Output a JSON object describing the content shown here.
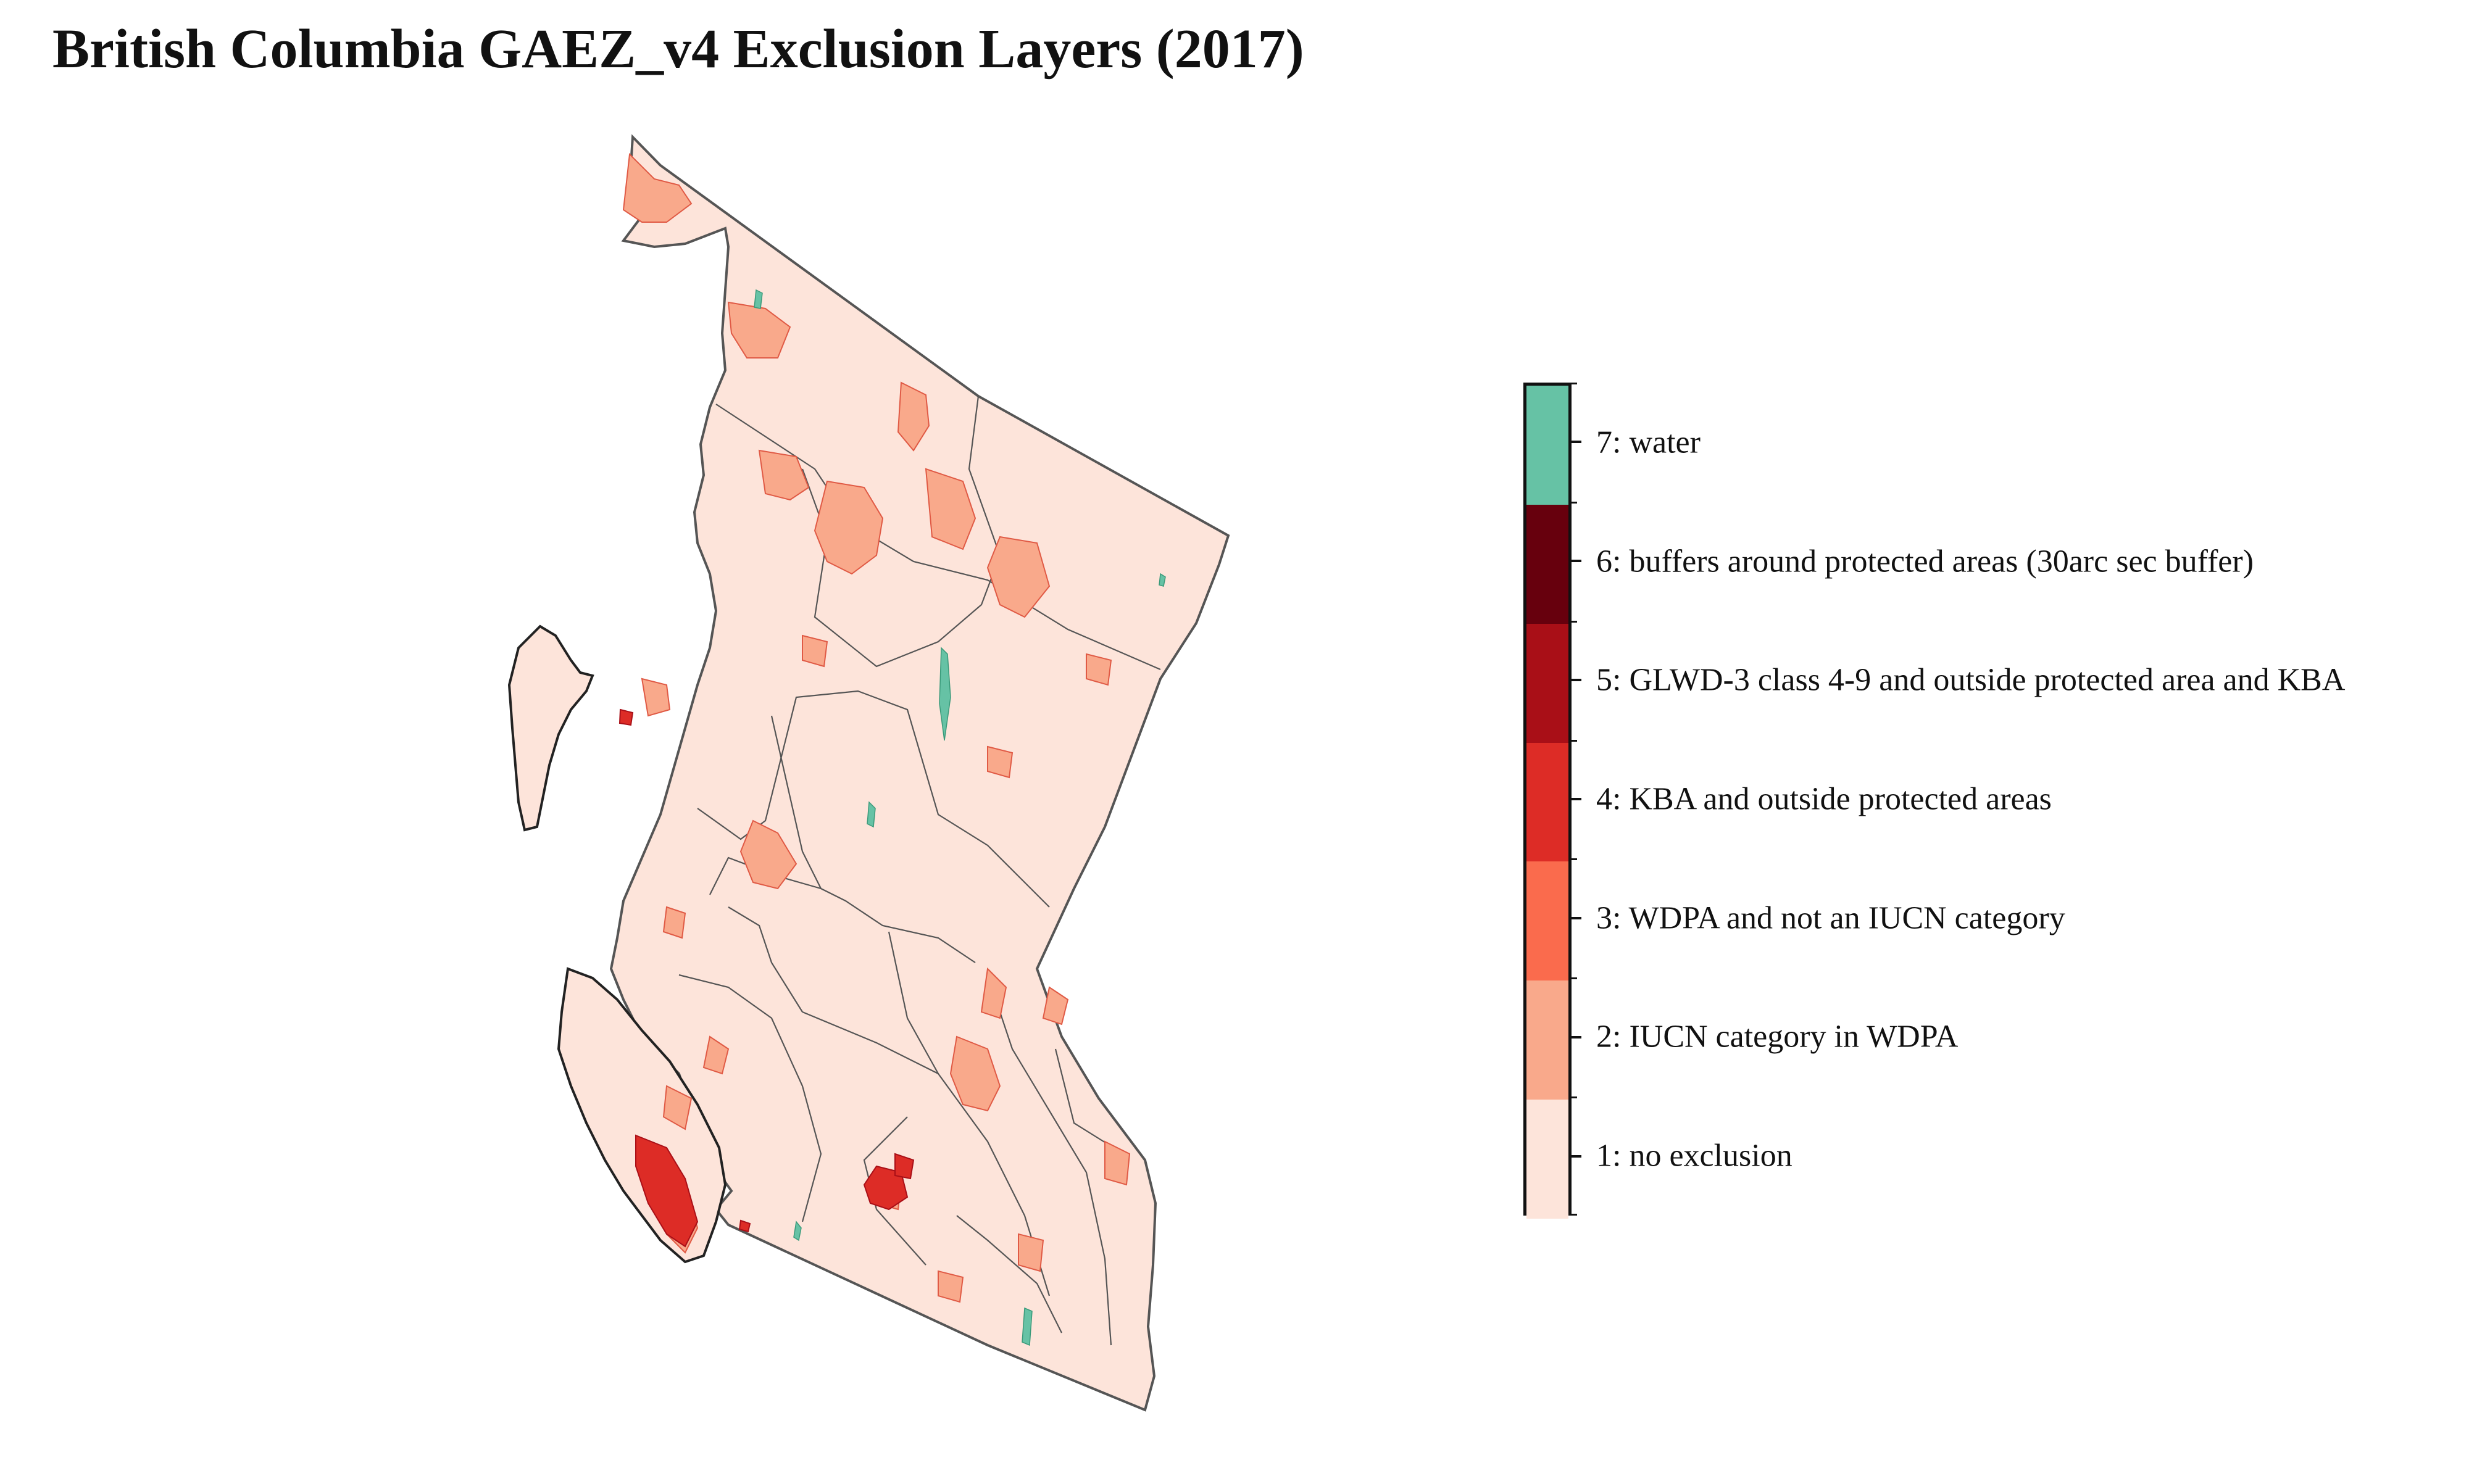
{
  "title": "British Columbia GAEZ_v4 Exclusion Layers (2017)",
  "colors": {
    "no_exclusion": "#fde4da",
    "iucn_wdpa": "#f9a98b",
    "wdpa_non_iucn": "#fa6b4d",
    "kba": "#dd2c26",
    "glwd": "#a90f17",
    "buffer": "#67000d",
    "water": "#66c2a5",
    "outline": "#555555",
    "coast": "#222222"
  },
  "legend": {
    "classes": [
      {
        "value": 7,
        "label": "7: water",
        "color": "#66c2a5"
      },
      {
        "value": 6,
        "label": "6: buffers around protected areas (30arc sec buffer)",
        "color": "#67000d"
      },
      {
        "value": 5,
        "label": "5: GLWD-3 class 4-9 and outside protected area and KBA",
        "color": "#a90f17"
      },
      {
        "value": 4,
        "label": "4: KBA and outside protected areas",
        "color": "#dd2c26"
      },
      {
        "value": 3,
        "label": "3: WDPA and not an IUCN category",
        "color": "#fa6b4d"
      },
      {
        "value": 2,
        "label": "2: IUCN category in WDPA",
        "color": "#f9a98b"
      },
      {
        "value": 1,
        "label": "1: no exclusion",
        "color": "#fde4da"
      }
    ]
  }
}
